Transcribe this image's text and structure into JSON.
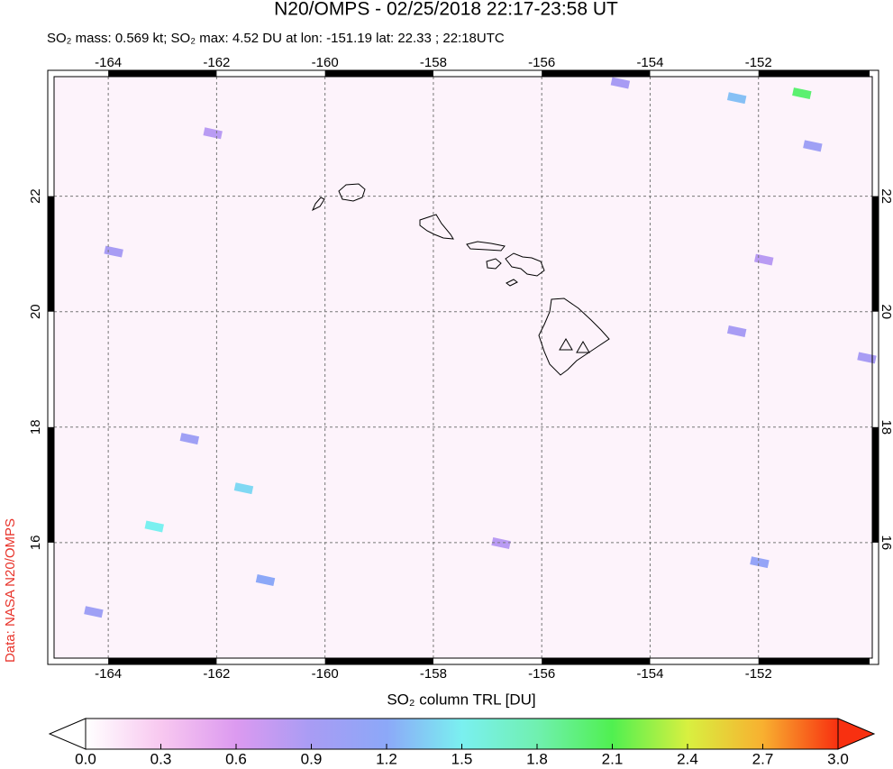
{
  "chart_data": {
    "type": "map",
    "title": "N20/OMPS - 02/25/2018 22:17-23:58 UT",
    "subtitle": "SO₂ mass: 0.569 kt; SO₂ max: 4.52 DU at lon: -151.19 lat: 22.33 ; 22:18UTC",
    "credit": "Data: NASA N20/OMPS",
    "colorbar_label": "SO₂ column TRL [DU]",
    "xlim": [
      -165,
      -149.9
    ],
    "ylim": [
      14,
      24.07
    ],
    "xticks": [
      -164,
      -162,
      -160,
      -158,
      -156,
      -154,
      -152
    ],
    "yticks": [
      16,
      18,
      20,
      22
    ],
    "grid": true,
    "clim": [
      0,
      3
    ],
    "cticks": [
      {
        "value": 0,
        "label": "0.0"
      },
      0.3,
      0.6,
      0.9,
      1.2,
      1.5,
      1.8,
      2.1,
      2.4,
      2.7,
      {
        "value": 3,
        "label": "3.0"
      }
    ],
    "colorscale": [
      [
        0,
        "#ffffff"
      ],
      [
        0.3,
        "#f8c8f0"
      ],
      [
        0.6,
        "#dc9af0"
      ],
      [
        0.9,
        "#a89cf4"
      ],
      [
        1.2,
        "#8ca8f8"
      ],
      [
        1.5,
        "#7af0f0"
      ],
      [
        1.8,
        "#70f0b0"
      ],
      [
        2.1,
        "#50f050"
      ],
      [
        2.4,
        "#d8f040"
      ],
      [
        2.7,
        "#f8b030"
      ],
      [
        3,
        "#f83010"
      ]
    ],
    "pixels": {
      "lon": [
        -151.2,
        -152.4,
        -151.0,
        -154.55,
        -151.9,
        -152.4,
        -150.0,
        -163.15,
        -161.5,
        -162.5,
        -164.27,
        -151.98,
        -161.1,
        -163.9,
        -162.07,
        -156.75
      ],
      "lat": [
        23.78,
        23.7,
        22.87,
        23.96,
        20.9,
        19.66,
        19.2,
        16.28,
        16.94,
        17.8,
        14.8,
        15.66,
        15.35,
        21.04,
        23.09,
        15.99
      ],
      "values": [
        2.0,
        1.3,
        1.0,
        0.9,
        0.8,
        0.9,
        0.9,
        1.5,
        1.4,
        1.0,
        1.0,
        1.1,
        1.2,
        0.9,
        0.8,
        0.8
      ]
    }
  }
}
